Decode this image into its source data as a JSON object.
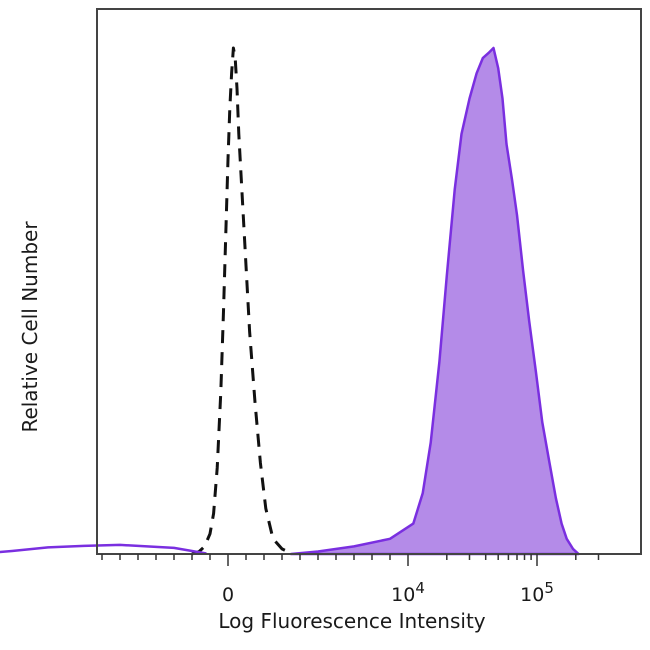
{
  "chart_data": {
    "type": "area",
    "title": "",
    "xlabel": "Log Fluorescence Intensity",
    "ylabel": "Relative Cell Number",
    "x_scale": "biexponential",
    "x_ticks": [
      {
        "value": 0,
        "label": "0"
      },
      {
        "value": 10000,
        "base": "10",
        "exp": "4"
      },
      {
        "value": 100000,
        "base": "10",
        "exp": "5"
      }
    ],
    "ylim": [
      0,
      100
    ],
    "grid": false,
    "legend": "none",
    "series": [
      {
        "style": "dashed",
        "color": "#111111",
        "fill": "none",
        "points": [
          [
            -2000,
            0
          ],
          [
            -1600,
            0.5
          ],
          [
            -1300,
            1.5
          ],
          [
            -1000,
            4
          ],
          [
            -800,
            8
          ],
          [
            -600,
            17
          ],
          [
            -400,
            32
          ],
          [
            -250,
            48
          ],
          [
            -100,
            66
          ],
          [
            0,
            78
          ],
          [
            100,
            88
          ],
          [
            200,
            95
          ],
          [
            300,
            100
          ],
          [
            400,
            98
          ],
          [
            500,
            92
          ],
          [
            600,
            83
          ],
          [
            800,
            70
          ],
          [
            1000,
            57
          ],
          [
            1200,
            44
          ],
          [
            1500,
            30
          ],
          [
            1800,
            18
          ],
          [
            2100,
            9
          ],
          [
            2500,
            3
          ],
          [
            3000,
            1
          ],
          [
            3600,
            0
          ]
        ]
      },
      {
        "style": "filled",
        "color": "#7a2fe0",
        "fill": "#b48be8",
        "points": [
          [
            3500,
            0
          ],
          [
            5000,
            0.5
          ],
          [
            7000,
            1.5
          ],
          [
            9000,
            3
          ],
          [
            11000,
            6
          ],
          [
            13000,
            12
          ],
          [
            15000,
            22
          ],
          [
            17500,
            38
          ],
          [
            20000,
            55
          ],
          [
            23000,
            72
          ],
          [
            26000,
            83
          ],
          [
            30000,
            90
          ],
          [
            34000,
            95
          ],
          [
            38000,
            98
          ],
          [
            42000,
            99
          ],
          [
            46000,
            100
          ],
          [
            50000,
            96
          ],
          [
            54000,
            90
          ],
          [
            58000,
            81
          ],
          [
            64000,
            74
          ],
          [
            70000,
            67
          ],
          [
            78000,
            56
          ],
          [
            87000,
            46
          ],
          [
            98000,
            36
          ],
          [
            110000,
            26
          ],
          [
            125000,
            18
          ],
          [
            140000,
            11
          ],
          [
            155000,
            6
          ],
          [
            170000,
            3
          ],
          [
            190000,
            1
          ],
          [
            210000,
            0
          ]
        ]
      },
      {
        "style": "solid",
        "color": "#7a2fe0",
        "fill": "none",
        "points": [
          [
            -14000,
            0
          ],
          [
            -12000,
            0.6
          ],
          [
            -10000,
            1.3
          ],
          [
            -8000,
            1.6
          ],
          [
            -6000,
            1.8
          ],
          [
            -4500,
            1.5
          ],
          [
            -3000,
            1.2
          ],
          [
            -2000,
            0.6
          ],
          [
            -1200,
            0.1
          ]
        ]
      }
    ]
  }
}
